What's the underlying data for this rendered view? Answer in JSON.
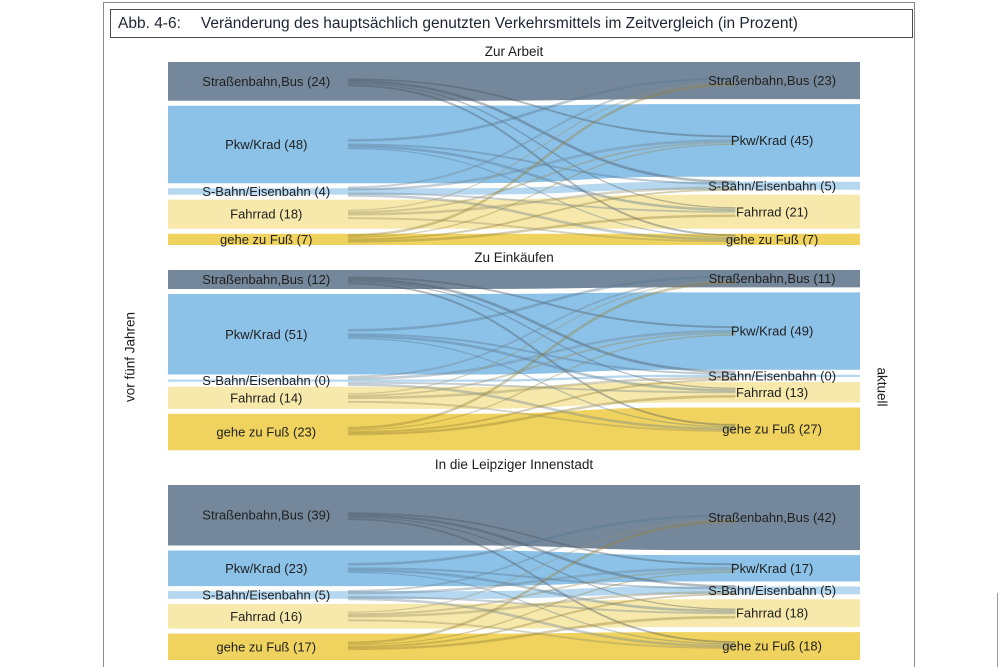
{
  "figure": {
    "label": "Abb. 4-6:",
    "title": "Veränderung des hauptsächlich genutzten Verkehrsmittels im Zeitvergleich (in Prozent)"
  },
  "axis": {
    "left_label": "vor fünf Jahren",
    "right_label": "aktuell"
  },
  "category_colors": [
    "#75889b",
    "#8cc1e8",
    "#b5d8f0",
    "#f7e8ab",
    "#f0d35e"
  ],
  "chart_data": [
    {
      "type": "alluvial",
      "title": "Zur Arbeit",
      "categories": [
        "Straßenbahn,Bus",
        "Pkw/Krad",
        "S-Bahn/Eisenbahn",
        "Fahrrad",
        "gehe zu Fuß"
      ],
      "series": [
        {
          "name": "vor fünf Jahren",
          "values": [
            24,
            48,
            4,
            18,
            7
          ]
        },
        {
          "name": "aktuell",
          "values": [
            23,
            45,
            5,
            21,
            7
          ]
        }
      ]
    },
    {
      "type": "alluvial",
      "title": "Zu Einkäufen",
      "categories": [
        "Straßenbahn,Bus",
        "Pkw/Krad",
        "S-Bahn/Eisenbahn",
        "Fahrrad",
        "gehe zu Fuß"
      ],
      "series": [
        {
          "name": "vor fünf Jahren",
          "values": [
            12,
            51,
            0,
            14,
            23
          ]
        },
        {
          "name": "aktuell",
          "values": [
            11,
            49,
            0,
            13,
            27
          ]
        }
      ]
    },
    {
      "type": "alluvial",
      "title": "In die Leipziger Innenstadt",
      "categories": [
        "Straßenbahn,Bus",
        "Pkw/Krad",
        "S-Bahn/Eisenbahn",
        "Fahrrad",
        "gehe zu Fuß"
      ],
      "series": [
        {
          "name": "vor fünf Jahren",
          "values": [
            39,
            23,
            5,
            16,
            17
          ]
        },
        {
          "name": "aktuell",
          "values": [
            42,
            17,
            5,
            18,
            18
          ]
        }
      ]
    }
  ]
}
